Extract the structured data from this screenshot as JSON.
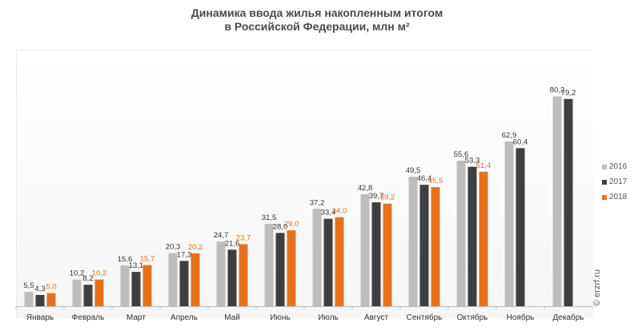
{
  "title_line1": "Динамика ввода жилья накопленным итогом",
  "title_line2": "в Российской Федерации, млн м²",
  "watermark": "© erzrf.ru",
  "chart_data": {
    "type": "bar",
    "title": "Динамика ввода жилья накопленным итогом в Российской Федерации, млн м²",
    "categories": [
      "Январь",
      "Февраль",
      "Март",
      "Апрель",
      "Май",
      "Июнь",
      "Июль",
      "Август",
      "Сентябрь",
      "Октябрь",
      "Ноябрь",
      "Декабрь"
    ],
    "series": [
      {
        "name": "2016",
        "color": "#bdbdbd",
        "label_color": "#333333",
        "values": [
          5.5,
          10.2,
          15.6,
          20.3,
          24.7,
          31.5,
          37.2,
          42.8,
          49.5,
          55.6,
          62.9,
          80.2
        ],
        "labels": [
          "5,5",
          "10,2",
          "15,6",
          "20,3",
          "24,7",
          "31,5",
          "37,2",
          "42,8",
          "49,5",
          "55,6",
          "62,9",
          "80,2"
        ]
      },
      {
        "name": "2017",
        "color": "#3f3f3f",
        "label_color": "#333333",
        "values": [
          4.3,
          8.2,
          13.1,
          17.3,
          21.6,
          28.0,
          33.4,
          39.7,
          46.4,
          53.3,
          60.4,
          79.2
        ],
        "labels": [
          "4,3",
          "8,2",
          "13,1",
          "17,3",
          "21,6",
          "28,0",
          "33,4",
          "39,7",
          "46,4",
          "53,3",
          "60,4",
          "79,2"
        ]
      },
      {
        "name": "2018",
        "color": "#e8721c",
        "label_color": "#e8721c",
        "values": [
          5.0,
          10.2,
          15.7,
          20.2,
          23.7,
          29.0,
          34.0,
          39.2,
          45.5,
          51.4,
          null,
          null
        ],
        "labels": [
          "5,0",
          "10,2",
          "15,7",
          "20,2",
          "23,7",
          "29,0",
          "34,0",
          "39,2",
          "45,5",
          "51,4",
          "",
          ""
        ]
      }
    ],
    "ylim": [
      0,
      88
    ],
    "grid": false,
    "legend_position": "right"
  }
}
